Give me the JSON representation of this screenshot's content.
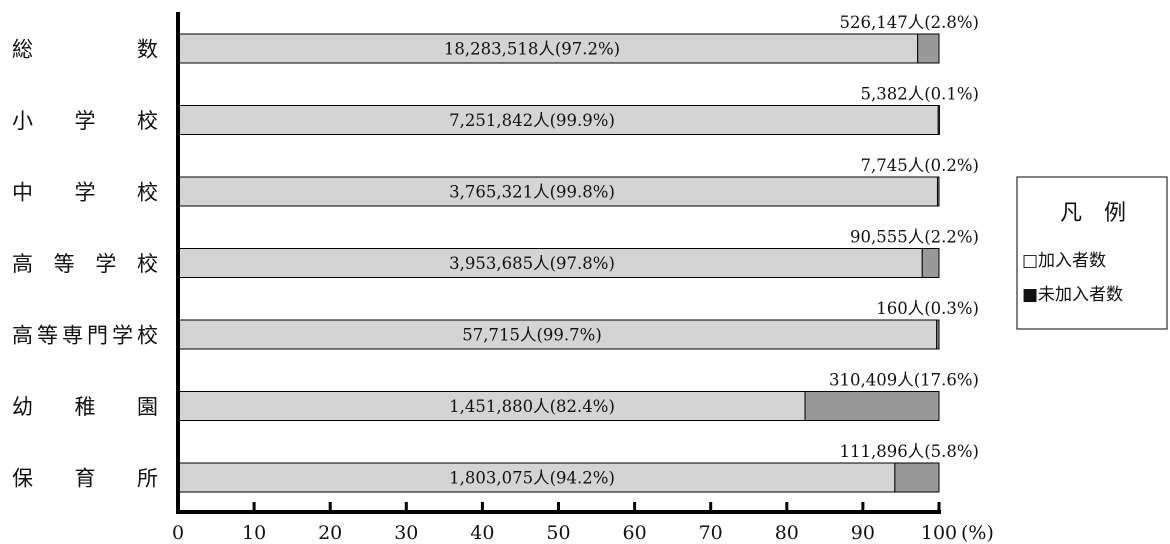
{
  "chart_data": {
    "type": "bar",
    "orientation": "horizontal",
    "stacked": true,
    "categories": [
      "総　　　数",
      "小　学　校",
      "中　学　校",
      "高 等 学 校",
      "高等専門学校",
      "幼　稚　園",
      "保　育　所"
    ],
    "series": [
      {
        "name": "加入者数",
        "color": "#d4d4d4",
        "values": [
          97.2,
          99.9,
          99.8,
          97.8,
          99.7,
          82.4,
          94.2
        ],
        "labels": [
          "18,283,518人(97.2%)",
          "7,251,842人(99.9%)",
          "3,765,321人(99.8%)",
          "3,953,685人(97.8%)",
          "57,715人(99.7%)",
          "1,451,880人(82.4%)",
          "1,803,075人(94.2%)"
        ]
      },
      {
        "name": "未加入者数",
        "color": "#999999",
        "values": [
          2.8,
          0.1,
          0.2,
          2.2,
          0.3,
          17.6,
          5.8
        ],
        "labels": [
          "526,147人(2.8%)",
          "5,382人(0.1%)",
          "7,745人(0.2%)",
          "90,555人(2.2%)",
          "160人(0.3%)",
          "310,409人(17.6%)",
          "111,896人(5.8%)"
        ]
      }
    ],
    "x_ticks": [
      0,
      10,
      20,
      30,
      40,
      50,
      60,
      70,
      80,
      90,
      100
    ],
    "x_unit": "(%)",
    "xlim": [
      0,
      100
    ],
    "legend": {
      "title": "凡　例",
      "placement": "right",
      "items": [
        {
          "label": "□加入者数",
          "color": "#d4d4d4"
        },
        {
          "label": "■未加入者数",
          "color": "#999999"
        }
      ]
    },
    "grid": false
  }
}
